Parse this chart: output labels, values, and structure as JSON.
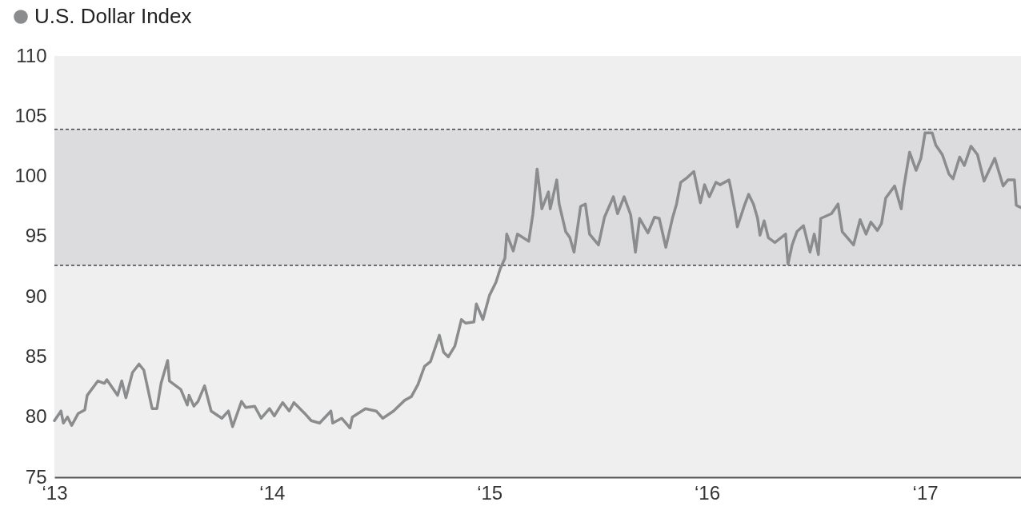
{
  "chart_data": {
    "type": "line",
    "x": [
      "2013-01-01",
      "2013-01-12",
      "2013-01-16",
      "2013-01-23",
      "2013-01-30",
      "2013-02-10",
      "2013-02-21",
      "2013-02-25",
      "2013-03-15",
      "2013-03-26",
      "2013-03-30",
      "2013-04-17",
      "2013-04-24",
      "2013-05-01",
      "2013-05-12",
      "2013-05-23",
      "2013-05-31",
      "2013-06-14",
      "2013-06-22",
      "2013-06-29",
      "2013-07-10",
      "2013-07-13",
      "2013-08-01",
      "2013-08-12",
      "2013-08-15",
      "2013-08-23",
      "2013-08-30",
      "2013-09-10",
      "2013-09-21",
      "2013-10-09",
      "2013-10-20",
      "2013-10-27",
      "2013-11-11",
      "2013-11-18",
      "2013-12-03",
      "2013-12-14",
      "2013-12-28",
      "2014-01-05",
      "2014-01-19",
      "2014-01-30",
      "2014-02-07",
      "2014-02-25",
      "2014-03-08",
      "2014-03-22",
      "2014-04-10",
      "2014-04-13",
      "2014-04-28",
      "2014-05-12",
      "2014-05-16",
      "2014-06-07",
      "2014-06-25",
      "2014-07-06",
      "2014-07-24",
      "2014-08-12",
      "2014-08-23",
      "2014-09-03",
      "2014-09-14",
      "2014-09-24",
      "2014-10-09",
      "2014-10-16",
      "2014-10-24",
      "2014-11-04",
      "2014-11-15",
      "2014-11-22",
      "2014-12-06",
      "2014-12-10",
      "2014-12-21",
      "2015-01-01",
      "2015-01-12",
      "2015-01-19",
      "2015-01-27",
      "2015-01-30",
      "2015-02-10",
      "2015-02-17",
      "2015-03-08",
      "2015-03-15",
      "2015-03-22",
      "2015-03-30",
      "2015-04-10",
      "2015-04-13",
      "2015-04-24",
      "2015-04-28",
      "2015-05-09",
      "2015-05-16",
      "2015-05-23",
      "2015-06-03",
      "2015-06-11",
      "2015-06-18",
      "2015-07-03",
      "2015-07-13",
      "2015-07-28",
      "2015-08-04",
      "2015-08-15",
      "2015-08-26",
      "2015-09-03",
      "2015-09-10",
      "2015-09-24",
      "2015-10-05",
      "2015-10-13",
      "2015-10-24",
      "2015-11-04",
      "2015-11-11",
      "2015-11-18",
      "2015-11-29",
      "2015-12-10",
      "2015-12-21",
      "2015-12-28",
      "2016-01-05",
      "2016-01-16",
      "2016-01-23",
      "2016-02-07",
      "2016-02-10",
      "2016-02-17",
      "2016-02-21",
      "2016-03-04",
      "2016-03-11",
      "2016-03-19",
      "2016-03-26",
      "2016-03-30",
      "2016-04-06",
      "2016-04-13",
      "2016-04-24",
      "2016-05-12",
      "2016-05-16",
      "2016-05-23",
      "2016-05-31",
      "2016-06-11",
      "2016-06-22",
      "2016-06-29",
      "2016-07-06",
      "2016-07-10",
      "2016-07-28",
      "2016-08-08",
      "2016-08-15",
      "2016-09-03",
      "2016-09-14",
      "2016-09-24",
      "2016-10-02",
      "2016-10-13",
      "2016-10-20",
      "2016-10-27",
      "2016-11-11",
      "2016-11-22",
      "2016-11-26",
      "2016-12-06",
      "2016-12-17",
      "2016-12-25",
      "2017-01-01",
      "2017-01-13",
      "2017-01-19",
      "2017-01-30",
      "2017-02-10",
      "2017-02-17",
      "2017-02-28",
      "2017-03-08",
      "2017-03-19",
      "2017-03-30",
      "2017-04-10",
      "2017-04-28",
      "2017-05-12",
      "2017-05-20",
      "2017-05-31",
      "2017-06-03",
      "2017-06-11"
    ],
    "series": [
      {
        "name": "U.S. Dollar Index",
        "color": "#8a8c8e",
        "values": [
          79.7,
          80.5,
          79.5,
          80.0,
          79.3,
          80.3,
          80.6,
          81.8,
          83.0,
          82.8,
          83.1,
          81.8,
          83.0,
          81.6,
          83.7,
          84.4,
          83.9,
          80.7,
          80.7,
          82.8,
          84.7,
          83.0,
          82.3,
          81.0,
          81.8,
          80.9,
          81.3,
          82.6,
          80.5,
          79.9,
          80.5,
          79.2,
          81.3,
          80.8,
          80.9,
          79.9,
          80.7,
          80.1,
          81.2,
          80.5,
          81.2,
          80.3,
          79.7,
          79.5,
          80.5,
          79.5,
          79.9,
          79.1,
          80.0,
          80.7,
          80.5,
          79.9,
          80.5,
          81.4,
          81.7,
          82.7,
          84.2,
          84.6,
          86.8,
          85.4,
          85.0,
          85.9,
          88.1,
          87.8,
          87.9,
          89.4,
          88.1,
          90.1,
          91.2,
          92.3,
          93.2,
          95.2,
          93.8,
          95.2,
          94.6,
          96.9,
          100.6,
          97.3,
          98.7,
          97.3,
          99.7,
          97.7,
          95.4,
          94.9,
          93.7,
          97.5,
          97.7,
          95.2,
          94.3,
          96.6,
          98.3,
          96.9,
          98.3,
          96.8,
          93.7,
          96.5,
          95.3,
          96.6,
          96.5,
          94.1,
          96.5,
          97.7,
          99.5,
          99.9,
          100.4,
          97.8,
          99.3,
          98.3,
          99.5,
          99.3,
          99.7,
          99.0,
          97.1,
          95.8,
          97.6,
          98.5,
          97.7,
          96.5,
          95.1,
          96.3,
          94.9,
          94.5,
          95.2,
          92.7,
          94.3,
          95.4,
          95.9,
          93.7,
          95.2,
          93.5,
          96.5,
          96.9,
          97.7,
          95.4,
          94.3,
          96.4,
          95.2,
          96.2,
          95.5,
          96.1,
          98.2,
          99.2,
          97.3,
          99.0,
          102.0,
          100.5,
          101.5,
          103.6,
          103.6,
          102.6,
          101.8,
          100.2,
          99.8,
          101.6,
          100.9,
          102.5,
          101.8,
          99.6,
          101.5,
          99.2,
          99.7,
          99.7,
          97.6,
          97.4
        ]
      }
    ],
    "xlim": [
      "2013-01-01",
      "2017-06-11"
    ],
    "xticks": [
      {
        "value": "2013-01-01",
        "label": "‘13"
      },
      {
        "value": "2014-01-01",
        "label": "‘14"
      },
      {
        "value": "2015-01-01",
        "label": "‘15"
      },
      {
        "value": "2016-01-01",
        "label": "‘16"
      },
      {
        "value": "2017-01-01",
        "label": "‘17"
      }
    ],
    "ylim": [
      75,
      110
    ],
    "yticks": [
      75,
      80,
      85,
      90,
      95,
      100,
      105,
      110
    ],
    "bands": [
      {
        "axis": "y",
        "from": 92.6,
        "to": 103.9,
        "color": "#dcdcde"
      }
    ],
    "ref_lines": [
      {
        "axis": "y",
        "value": 92.6,
        "color": "#444444",
        "line_style": "dashed"
      },
      {
        "axis": "y",
        "value": 103.9,
        "color": "#444444",
        "line_style": "dashed"
      }
    ],
    "legend": "top left",
    "grid": false
  }
}
